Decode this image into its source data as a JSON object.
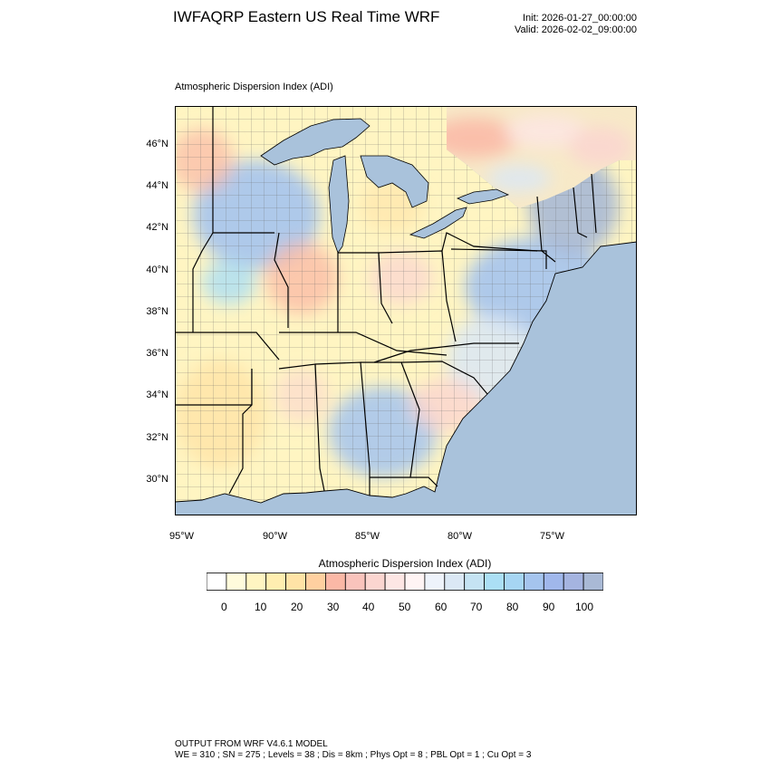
{
  "header": {
    "title": "IWFAQRP Eastern US Real Time WRF",
    "init": "Init: 2026-01-27_00:00:00",
    "valid": "Valid: 2026-02-02_09:00:00"
  },
  "plot": {
    "subtitle": "Atmospheric Dispersion Index   (ADI)",
    "lat_labels": [
      "46°N",
      "44°N",
      "42°N",
      "40°N",
      "38°N",
      "36°N",
      "34°N",
      "32°N",
      "30°N"
    ],
    "lon_labels": [
      "95°W",
      "90°W",
      "85°W",
      "80°W",
      "75°W"
    ],
    "colors": {
      "ocean": "#a9c2db",
      "lake": "#a9c2db",
      "canada": "#f7e9c8",
      "frame": "#000000"
    }
  },
  "colorbar": {
    "title": "Atmospheric Dispersion Index  (ADI)",
    "labels": [
      "0",
      "10",
      "20",
      "30",
      "40",
      "50",
      "60",
      "70",
      "80",
      "90",
      "100"
    ],
    "colors": [
      "#ffffff",
      "#fffbdc",
      "#fff5c2",
      "#ffeeb0",
      "#ffe3a6",
      "#ffd0a0",
      "#fbb8a6",
      "#f9c3bc",
      "#fbd5d0",
      "#fde6e4",
      "#fff4f4",
      "#eef3fb",
      "#dbe8f5",
      "#c5e3f3",
      "#abdff5",
      "#a6d5f3",
      "#a5c4ee",
      "#a0b7eb",
      "#a5b4e0",
      "#a9b9d5"
    ]
  },
  "footer": {
    "line1": "OUTPUT FROM WRF V4.6.1 MODEL",
    "line2": "WE = 310 ; SN = 275 ; Levels = 38 ; Dis = 8km ; Phys Opt = 8 ; PBL Opt = 1 ; Cu Opt = 3"
  }
}
